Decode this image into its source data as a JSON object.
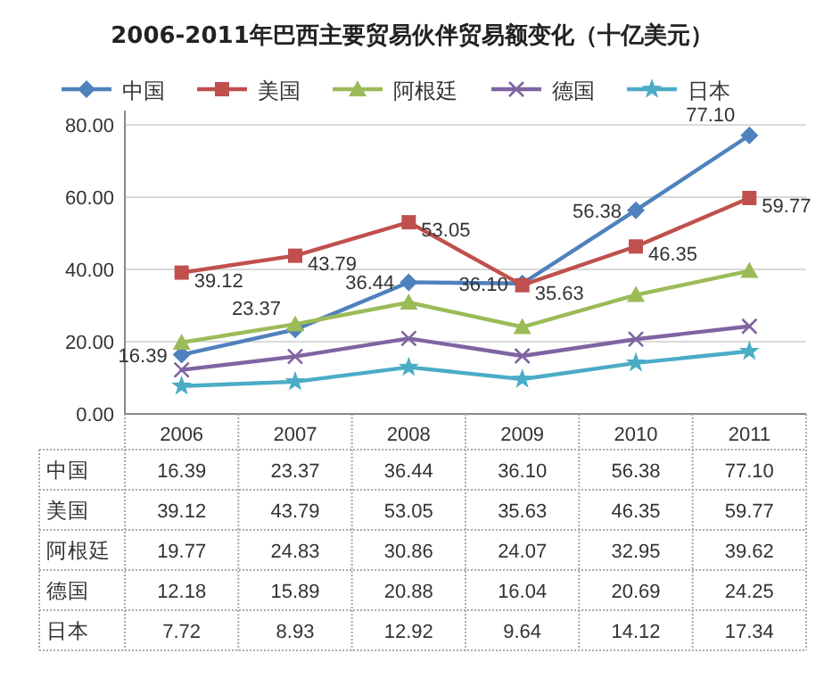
{
  "chart_data": {
    "type": "line",
    "title": "2006-2011年巴西主要贸易伙伴贸易额变化（十亿美元）",
    "categories": [
      "2006",
      "2007",
      "2008",
      "2009",
      "2010",
      "2011"
    ],
    "series": [
      {
        "name": "中国",
        "color": "#4f81bd",
        "marker": "diamond",
        "values": [
          16.39,
          23.37,
          36.44,
          36.1,
          56.38,
          77.1
        ],
        "value_labels": [
          "16.39",
          "23.37",
          "36.44",
          "36.10",
          "56.38",
          "77.10"
        ]
      },
      {
        "name": "美国",
        "color": "#c0504d",
        "marker": "square",
        "values": [
          39.12,
          43.79,
          53.05,
          35.63,
          46.35,
          59.77
        ],
        "value_labels": [
          "39.12",
          "43.79",
          "53.05",
          "35.63",
          "46.35",
          "59.77"
        ]
      },
      {
        "name": "阿根廷",
        "color": "#9bbb59",
        "marker": "triangle",
        "values": [
          19.77,
          24.83,
          30.86,
          24.07,
          32.95,
          39.62
        ]
      },
      {
        "name": "德国",
        "color": "#8064a2",
        "marker": "cross",
        "values": [
          12.18,
          15.89,
          20.88,
          16.04,
          20.69,
          24.25
        ]
      },
      {
        "name": "日本",
        "color": "#4bacc6",
        "marker": "star",
        "values": [
          7.72,
          8.93,
          12.92,
          9.64,
          14.12,
          17.34
        ]
      }
    ],
    "ylim": [
      0,
      80
    ],
    "yticks": [
      {
        "value": 0,
        "label": "0.00"
      },
      {
        "value": 20,
        "label": "20.00"
      },
      {
        "value": 40,
        "label": "40.00"
      },
      {
        "value": 60,
        "label": "60.00"
      },
      {
        "value": 80,
        "label": "80.00"
      }
    ],
    "grid": "y",
    "legend": "top",
    "data_labels": true
  }
}
